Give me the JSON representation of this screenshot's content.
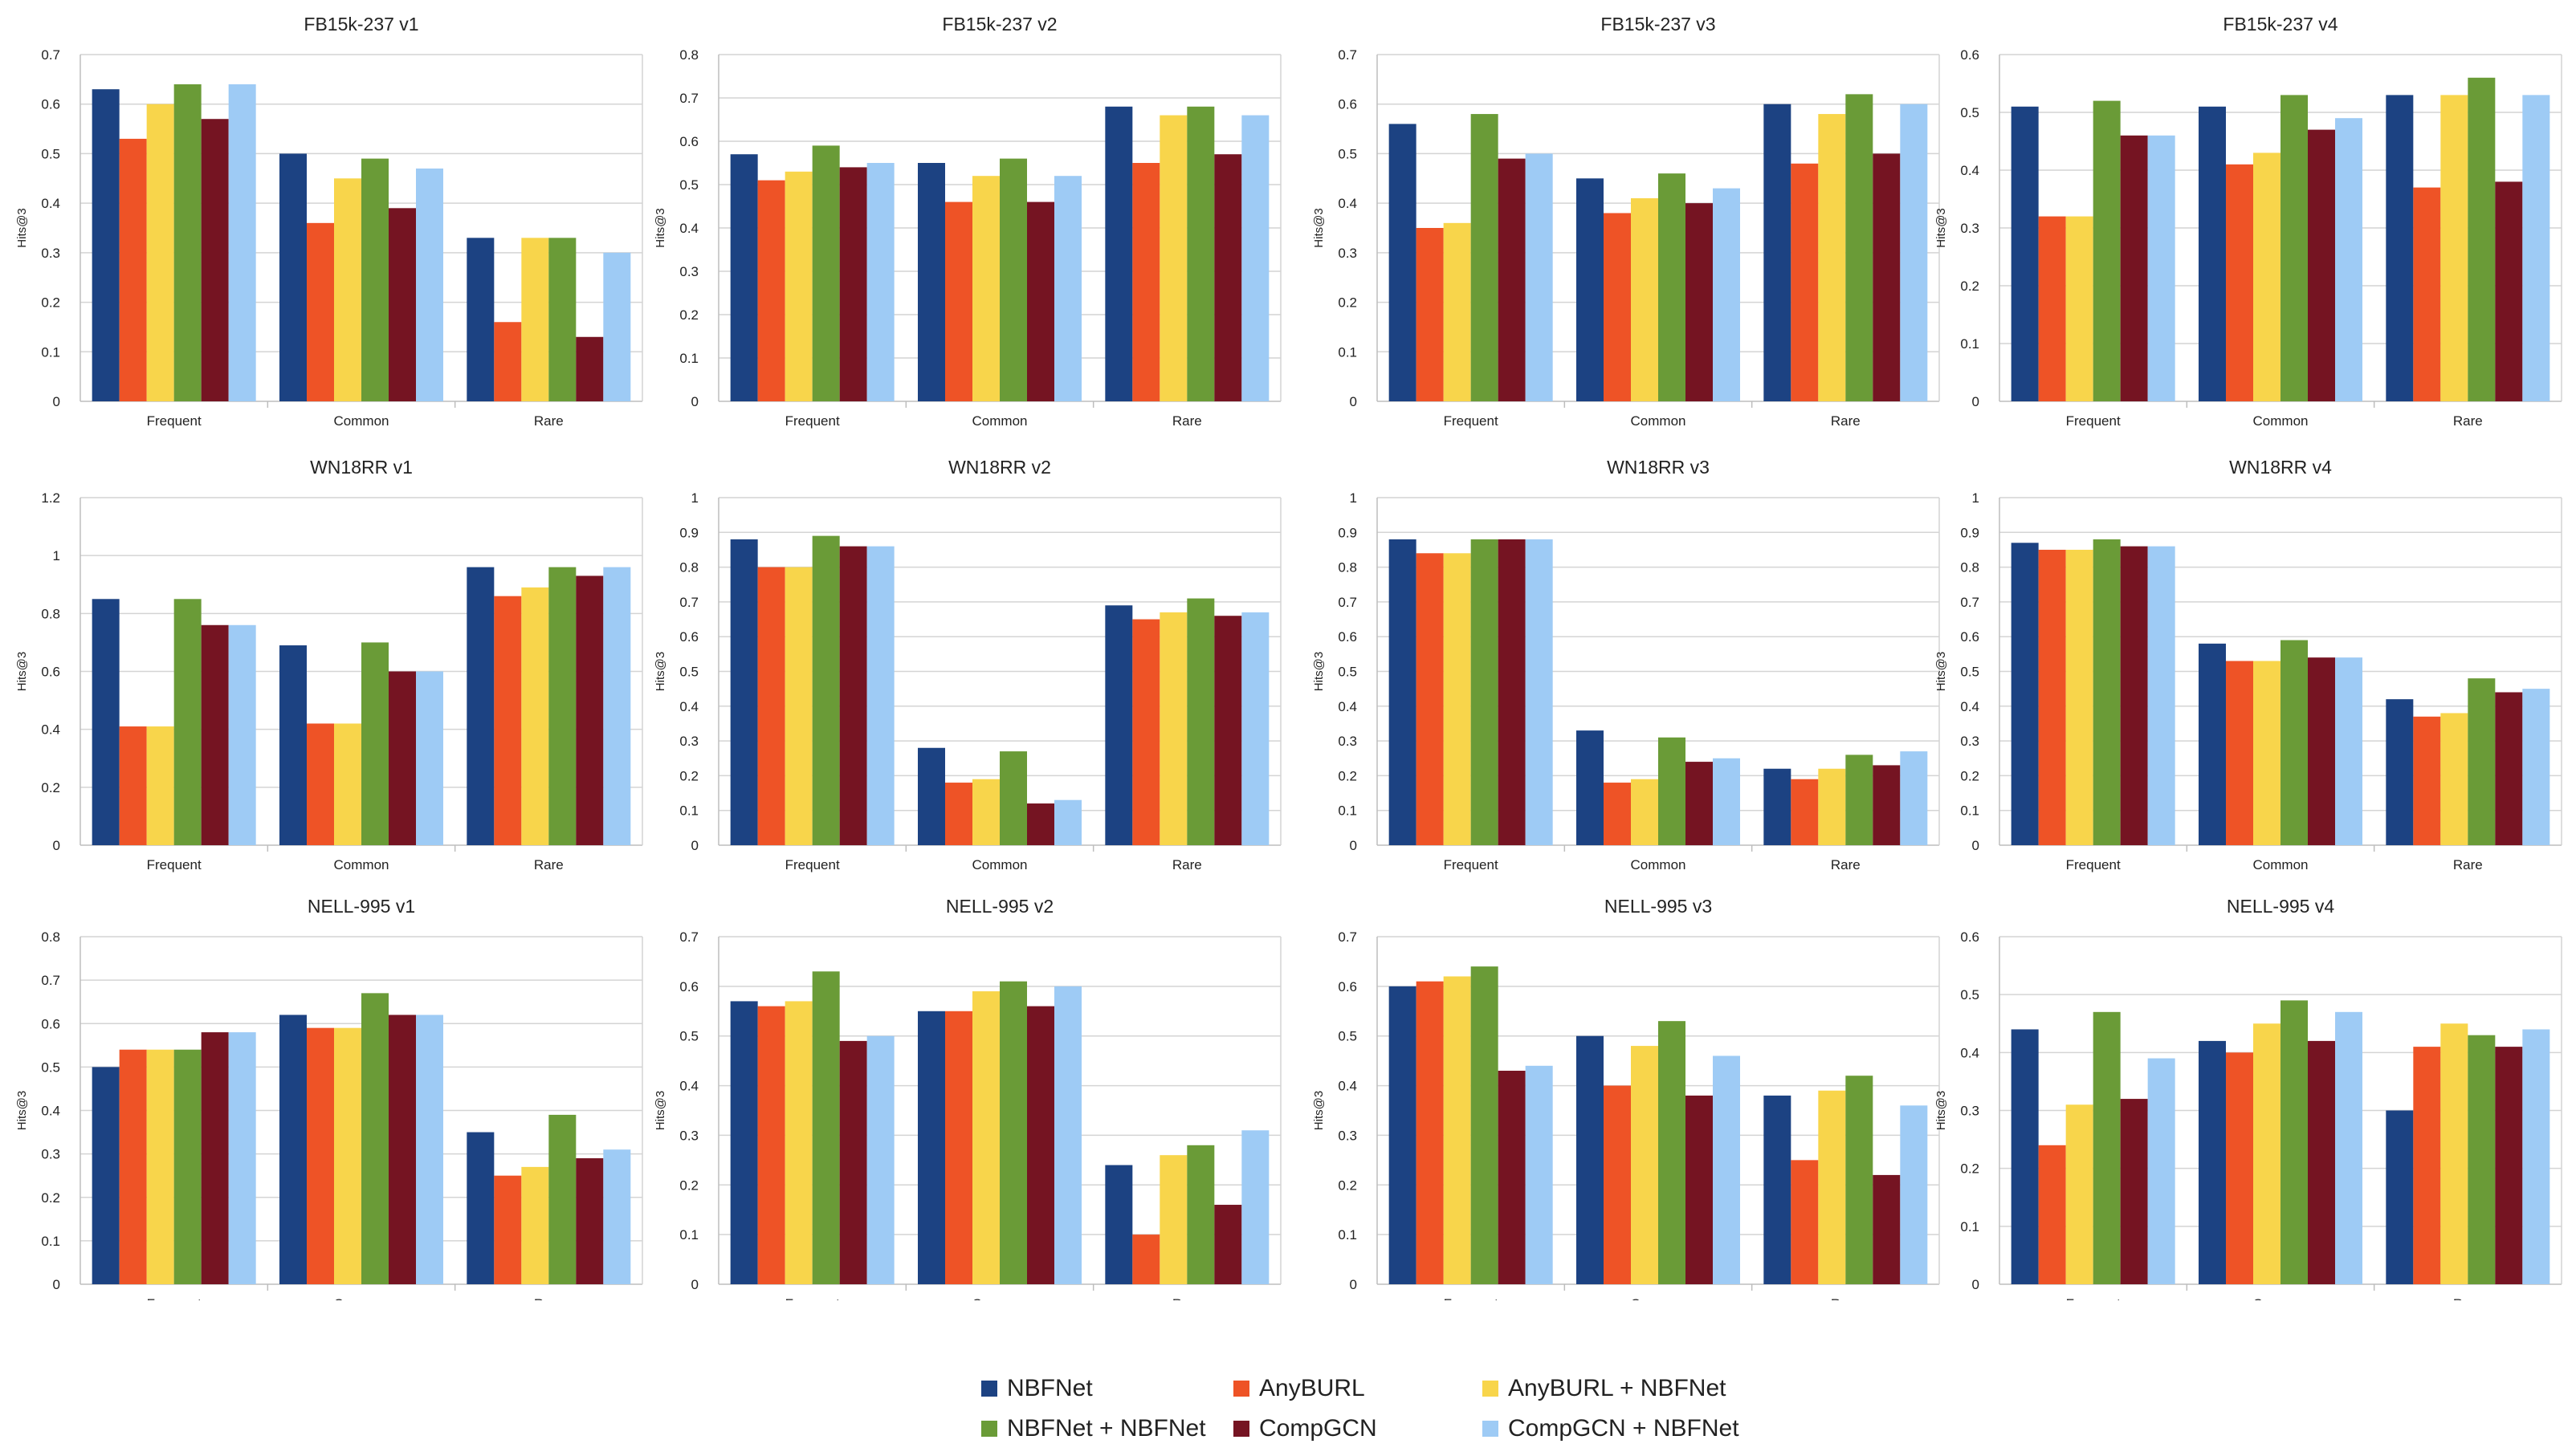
{
  "chart_data": [
    {
      "type": "bar",
      "title": "FB15k-237 v1",
      "ylabel": "Hits@3",
      "ylim": [
        0,
        0.7
      ],
      "ystep": 0.1,
      "yticks": [
        "0",
        "0.1",
        "0.2",
        "0.3",
        "0.4",
        "0.5",
        "0.6",
        "0.7"
      ],
      "categories": [
        "Frequent",
        "Common",
        "Rare"
      ],
      "series": [
        {
          "name": "NBFNet",
          "values": [
            0.63,
            0.5,
            0.33
          ]
        },
        {
          "name": "AnyBURL",
          "values": [
            0.53,
            0.36,
            0.16
          ]
        },
        {
          "name": "AnyBURL + NBFNet",
          "values": [
            0.6,
            0.45,
            0.33
          ]
        },
        {
          "name": "NBFNet + NBFNet",
          "values": [
            0.64,
            0.49,
            0.33
          ]
        },
        {
          "name": "CompGCN",
          "values": [
            0.57,
            0.39,
            0.13
          ]
        },
        {
          "name": "CompGCN + NBFNet",
          "values": [
            0.64,
            0.47,
            0.3
          ]
        }
      ]
    },
    {
      "type": "bar",
      "title": "FB15k-237 v2",
      "ylabel": "Hits@3",
      "ylim": [
        0,
        0.8
      ],
      "ystep": 0.1,
      "yticks": [
        "0",
        "0.1",
        "0.2",
        "0.3",
        "0.4",
        "0.5",
        "0.6",
        "0.7",
        "0.8"
      ],
      "categories": [
        "Frequent",
        "Common",
        "Rare"
      ],
      "series": [
        {
          "name": "NBFNet",
          "values": [
            0.57,
            0.55,
            0.68
          ]
        },
        {
          "name": "AnyBURL",
          "values": [
            0.51,
            0.46,
            0.55
          ]
        },
        {
          "name": "AnyBURL + NBFNet",
          "values": [
            0.53,
            0.52,
            0.66
          ]
        },
        {
          "name": "NBFNet + NBFNet",
          "values": [
            0.59,
            0.56,
            0.68
          ]
        },
        {
          "name": "CompGCN",
          "values": [
            0.54,
            0.46,
            0.57
          ]
        },
        {
          "name": "CompGCN + NBFNet",
          "values": [
            0.55,
            0.52,
            0.66
          ]
        }
      ]
    },
    {
      "type": "bar",
      "title": "FB15k-237 v3",
      "ylabel": "Hits@3",
      "ylim": [
        0,
        0.7
      ],
      "ystep": 0.1,
      "yticks": [
        "0",
        "0.1",
        "0.2",
        "0.3",
        "0.4",
        "0.5",
        "0.6",
        "0.7"
      ],
      "categories": [
        "Frequent",
        "Common",
        "Rare"
      ],
      "series": [
        {
          "name": "NBFNet",
          "values": [
            0.56,
            0.45,
            0.6
          ]
        },
        {
          "name": "AnyBURL",
          "values": [
            0.35,
            0.38,
            0.48
          ]
        },
        {
          "name": "AnyBURL + NBFNet",
          "values": [
            0.36,
            0.41,
            0.58
          ]
        },
        {
          "name": "NBFNet + NBFNet",
          "values": [
            0.58,
            0.46,
            0.62
          ]
        },
        {
          "name": "CompGCN",
          "values": [
            0.49,
            0.4,
            0.5
          ]
        },
        {
          "name": "CompGCN + NBFNet",
          "values": [
            0.5,
            0.43,
            0.6
          ]
        }
      ]
    },
    {
      "type": "bar",
      "title": "FB15k-237 v4",
      "ylabel": "Hits@3",
      "ylim": [
        0,
        0.6
      ],
      "ystep": 0.1,
      "yticks": [
        "0",
        "0.1",
        "0.2",
        "0.3",
        "0.4",
        "0.5",
        "0.6"
      ],
      "categories": [
        "Frequent",
        "Common",
        "Rare"
      ],
      "series": [
        {
          "name": "NBFNet",
          "values": [
            0.51,
            0.51,
            0.53
          ]
        },
        {
          "name": "AnyBURL",
          "values": [
            0.32,
            0.41,
            0.37
          ]
        },
        {
          "name": "AnyBURL + NBFNet",
          "values": [
            0.32,
            0.43,
            0.53
          ]
        },
        {
          "name": "NBFNet + NBFNet",
          "values": [
            0.52,
            0.53,
            0.56
          ]
        },
        {
          "name": "CompGCN",
          "values": [
            0.46,
            0.47,
            0.38
          ]
        },
        {
          "name": "CompGCN + NBFNet",
          "values": [
            0.46,
            0.49,
            0.53
          ]
        }
      ]
    },
    {
      "type": "bar",
      "title": "WN18RR v1",
      "ylabel": "Hits@3",
      "ylim": [
        0,
        1.2
      ],
      "ystep": 0.2,
      "yticks": [
        "0",
        "0.2",
        "0.4",
        "0.6",
        "0.8",
        "1",
        "1.2"
      ],
      "categories": [
        "Frequent",
        "Common",
        "Rare"
      ],
      "series": [
        {
          "name": "NBFNet",
          "values": [
            0.85,
            0.69,
            0.96
          ]
        },
        {
          "name": "AnyBURL",
          "values": [
            0.41,
            0.42,
            0.86
          ]
        },
        {
          "name": "AnyBURL + NBFNet",
          "values": [
            0.41,
            0.42,
            0.89
          ]
        },
        {
          "name": "NBFNet + NBFNet",
          "values": [
            0.85,
            0.7,
            0.96
          ]
        },
        {
          "name": "CompGCN",
          "values": [
            0.76,
            0.6,
            0.93
          ]
        },
        {
          "name": "CompGCN + NBFNet",
          "values": [
            0.76,
            0.6,
            0.96
          ]
        }
      ]
    },
    {
      "type": "bar",
      "title": "WN18RR v2",
      "ylabel": "Hits@3",
      "ylim": [
        0,
        1
      ],
      "ystep": 0.1,
      "yticks": [
        "0",
        "0.1",
        "0.2",
        "0.3",
        "0.4",
        "0.5",
        "0.6",
        "0.7",
        "0.8",
        "0.9",
        "1"
      ],
      "categories": [
        "Frequent",
        "Common",
        "Rare"
      ],
      "series": [
        {
          "name": "NBFNet",
          "values": [
            0.88,
            0.28,
            0.69
          ]
        },
        {
          "name": "AnyBURL",
          "values": [
            0.8,
            0.18,
            0.65
          ]
        },
        {
          "name": "AnyBURL + NBFNet",
          "values": [
            0.8,
            0.19,
            0.67
          ]
        },
        {
          "name": "NBFNet + NBFNet",
          "values": [
            0.89,
            0.27,
            0.71
          ]
        },
        {
          "name": "CompGCN",
          "values": [
            0.86,
            0.12,
            0.66
          ]
        },
        {
          "name": "CompGCN + NBFNet",
          "values": [
            0.86,
            0.13,
            0.67
          ]
        }
      ]
    },
    {
      "type": "bar",
      "title": "WN18RR v3",
      "ylabel": "Hits@3",
      "ylim": [
        0,
        1
      ],
      "ystep": 0.1,
      "yticks": [
        "0",
        "0.1",
        "0.2",
        "0.3",
        "0.4",
        "0.5",
        "0.6",
        "0.7",
        "0.8",
        "0.9",
        "1"
      ],
      "categories": [
        "Frequent",
        "Common",
        "Rare"
      ],
      "series": [
        {
          "name": "NBFNet",
          "values": [
            0.88,
            0.33,
            0.22
          ]
        },
        {
          "name": "AnyBURL",
          "values": [
            0.84,
            0.18,
            0.19
          ]
        },
        {
          "name": "AnyBURL + NBFNet",
          "values": [
            0.84,
            0.19,
            0.22
          ]
        },
        {
          "name": "NBFNet + NBFNet",
          "values": [
            0.88,
            0.31,
            0.26
          ]
        },
        {
          "name": "CompGCN",
          "values": [
            0.88,
            0.24,
            0.23
          ]
        },
        {
          "name": "CompGCN + NBFNet",
          "values": [
            0.88,
            0.25,
            0.27
          ]
        }
      ]
    },
    {
      "type": "bar",
      "title": "WN18RR v4",
      "ylabel": "Hits@3",
      "ylim": [
        0,
        1
      ],
      "ystep": 0.1,
      "yticks": [
        "0",
        "0.1",
        "0.2",
        "0.3",
        "0.4",
        "0.5",
        "0.6",
        "0.7",
        "0.8",
        "0.9",
        "1"
      ],
      "categories": [
        "Frequent",
        "Common",
        "Rare"
      ],
      "series": [
        {
          "name": "NBFNet",
          "values": [
            0.87,
            0.58,
            0.42
          ]
        },
        {
          "name": "AnyBURL",
          "values": [
            0.85,
            0.53,
            0.37
          ]
        },
        {
          "name": "AnyBURL + NBFNet",
          "values": [
            0.85,
            0.53,
            0.38
          ]
        },
        {
          "name": "NBFNet + NBFNet",
          "values": [
            0.88,
            0.59,
            0.48
          ]
        },
        {
          "name": "CompGCN",
          "values": [
            0.86,
            0.54,
            0.44
          ]
        },
        {
          "name": "CompGCN + NBFNet",
          "values": [
            0.86,
            0.54,
            0.45
          ]
        }
      ]
    },
    {
      "type": "bar",
      "title": "NELL-995 v1",
      "ylabel": "Hits@3",
      "ylim": [
        0,
        0.8
      ],
      "ystep": 0.1,
      "yticks": [
        "0",
        "0.1",
        "0.2",
        "0.3",
        "0.4",
        "0.5",
        "0.6",
        "0.7",
        "0.8"
      ],
      "categories": [
        "Frequent",
        "Common",
        "Rare"
      ],
      "series": [
        {
          "name": "NBFNet",
          "values": [
            0.5,
            0.62,
            0.35
          ]
        },
        {
          "name": "AnyBURL",
          "values": [
            0.54,
            0.59,
            0.25
          ]
        },
        {
          "name": "AnyBURL + NBFNet",
          "values": [
            0.54,
            0.59,
            0.27
          ]
        },
        {
          "name": "NBFNet + NBFNet",
          "values": [
            0.54,
            0.67,
            0.39
          ]
        },
        {
          "name": "CompGCN",
          "values": [
            0.58,
            0.62,
            0.29
          ]
        },
        {
          "name": "CompGCN + NBFNet",
          "values": [
            0.58,
            0.62,
            0.31
          ]
        }
      ]
    },
    {
      "type": "bar",
      "title": "NELL-995 v2",
      "ylabel": "Hits@3",
      "ylim": [
        0,
        0.7
      ],
      "ystep": 0.1,
      "yticks": [
        "0",
        "0.1",
        "0.2",
        "0.3",
        "0.4",
        "0.5",
        "0.6",
        "0.7"
      ],
      "categories": [
        "Frequent",
        "Common",
        "Rare"
      ],
      "series": [
        {
          "name": "NBFNet",
          "values": [
            0.57,
            0.55,
            0.24
          ]
        },
        {
          "name": "AnyBURL",
          "values": [
            0.56,
            0.55,
            0.1
          ]
        },
        {
          "name": "AnyBURL + NBFNet",
          "values": [
            0.57,
            0.59,
            0.26
          ]
        },
        {
          "name": "NBFNet + NBFNet",
          "values": [
            0.63,
            0.61,
            0.28
          ]
        },
        {
          "name": "CompGCN",
          "values": [
            0.49,
            0.56,
            0.16
          ]
        },
        {
          "name": "CompGCN + NBFNet",
          "values": [
            0.5,
            0.6,
            0.31
          ]
        }
      ]
    },
    {
      "type": "bar",
      "title": "NELL-995 v3",
      "ylabel": "Hits@3",
      "ylim": [
        0,
        0.7
      ],
      "ystep": 0.1,
      "yticks": [
        "0",
        "0.1",
        "0.2",
        "0.3",
        "0.4",
        "0.5",
        "0.6",
        "0.7"
      ],
      "categories": [
        "Frequent",
        "Common",
        "Rare"
      ],
      "series": [
        {
          "name": "NBFNet",
          "values": [
            0.6,
            0.5,
            0.38
          ]
        },
        {
          "name": "AnyBURL",
          "values": [
            0.61,
            0.4,
            0.25
          ]
        },
        {
          "name": "AnyBURL + NBFNet",
          "values": [
            0.62,
            0.48,
            0.39
          ]
        },
        {
          "name": "NBFNet + NBFNet",
          "values": [
            0.64,
            0.53,
            0.42
          ]
        },
        {
          "name": "CompGCN",
          "values": [
            0.43,
            0.38,
            0.22
          ]
        },
        {
          "name": "CompGCN + NBFNet",
          "values": [
            0.44,
            0.46,
            0.36
          ]
        }
      ]
    },
    {
      "type": "bar",
      "title": "NELL-995 v4",
      "ylabel": "Hits@3",
      "ylim": [
        0,
        0.6
      ],
      "ystep": 0.1,
      "yticks": [
        "0",
        "0.1",
        "0.2",
        "0.3",
        "0.4",
        "0.5",
        "0.6"
      ],
      "categories": [
        "Frequent",
        "Common",
        "Rare"
      ],
      "series": [
        {
          "name": "NBFNet",
          "values": [
            0.44,
            0.42,
            0.3
          ]
        },
        {
          "name": "AnyBURL",
          "values": [
            0.24,
            0.4,
            0.41
          ]
        },
        {
          "name": "AnyBURL + NBFNet",
          "values": [
            0.31,
            0.45,
            0.45
          ]
        },
        {
          "name": "NBFNet + NBFNet",
          "values": [
            0.47,
            0.49,
            0.43
          ]
        },
        {
          "name": "CompGCN",
          "values": [
            0.32,
            0.42,
            0.41
          ]
        },
        {
          "name": "CompGCN + NBFNet",
          "values": [
            0.39,
            0.47,
            0.44
          ]
        }
      ]
    }
  ],
  "legend": [
    {
      "name": "NBFNet",
      "color": "#1c4282"
    },
    {
      "name": "AnyBURL",
      "color": "#ee5326"
    },
    {
      "name": "AnyBURL + NBFNet",
      "color": "#f8d54b"
    },
    {
      "name": "NBFNet + NBFNet",
      "color": "#6a9b37"
    },
    {
      "name": "CompGCN",
      "color": "#751422"
    },
    {
      "name": "CompGCN + NBFNet",
      "color": "#9ecbf5"
    }
  ],
  "colors": {
    "grid": "#d4d4d4",
    "axis": "#bdbdbd",
    "text": "#222222"
  }
}
